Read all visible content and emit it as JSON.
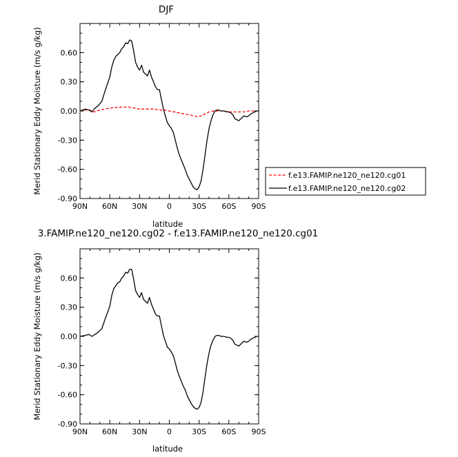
{
  "chart_data": [
    {
      "type": "line",
      "title": "DJF",
      "xlabel": "latitude",
      "ylabel": "Merid Stationary Eddy Moisture (m/s g/kg)",
      "x_ticks": [
        {
          "value": 90,
          "label": "90N"
        },
        {
          "value": 60,
          "label": "60N"
        },
        {
          "value": 30,
          "label": "30N"
        },
        {
          "value": 0,
          "label": "0"
        },
        {
          "value": -30,
          "label": "30S"
        },
        {
          "value": -60,
          "label": "60S"
        },
        {
          "value": -90,
          "label": "90S"
        }
      ],
      "y_ticks": [
        {
          "value": 0.6,
          "label": "0.60"
        },
        {
          "value": 0.3,
          "label": "0.30"
        },
        {
          "value": 0.0,
          "label": "0.00"
        },
        {
          "value": -0.3,
          "label": "-0.30"
        },
        {
          "value": -0.6,
          "label": "-0.60"
        },
        {
          "value": -0.9,
          "label": "-0.90"
        }
      ],
      "xlim": [
        90,
        -90
      ],
      "ylim": [
        -0.9,
        0.9
      ],
      "legend": "right",
      "series": [
        {
          "name": "f.e13.FAMIP.ne120_ne120.cg01",
          "color": "#ff0000",
          "dash": "dashed",
          "x": [
            90,
            85,
            80,
            76,
            70,
            60,
            50,
            45,
            40,
            35,
            30,
            25,
            20,
            15,
            10,
            5,
            0,
            -5,
            -10,
            -15,
            -20,
            -25,
            -28,
            -32,
            -36,
            -40,
            -45,
            -50,
            -55,
            -60,
            -65,
            -70,
            -75,
            -80,
            -85,
            -90
          ],
          "y": [
            0.0,
            0.01,
            0.01,
            -0.01,
            0.01,
            0.03,
            0.04,
            0.04,
            0.04,
            0.03,
            0.02,
            0.02,
            0.02,
            0.02,
            0.01,
            0.01,
            0.0,
            -0.01,
            -0.02,
            -0.03,
            -0.04,
            -0.05,
            -0.06,
            -0.05,
            -0.03,
            -0.01,
            0.0,
            0.0,
            0.0,
            -0.01,
            -0.01,
            -0.01,
            -0.01,
            0.0,
            0.0,
            0.0
          ]
        },
        {
          "name": "f.e13.FAMIP.ne120_ne120.cg02",
          "color": "#000000",
          "dash": "solid",
          "x": [
            90,
            85,
            81,
            78,
            75,
            72,
            68,
            65,
            60,
            58,
            56,
            54,
            52,
            50,
            48,
            46,
            44,
            42,
            40,
            38,
            36,
            34,
            32,
            30,
            28,
            26,
            24,
            22,
            20,
            18,
            16,
            14,
            12,
            10,
            8,
            6,
            4,
            2,
            0,
            -2,
            -4,
            -6,
            -8,
            -10,
            -12,
            -14,
            -16,
            -18,
            -20,
            -22,
            -24,
            -26,
            -28,
            -30,
            -32,
            -34,
            -36,
            -38,
            -40,
            -42,
            -44,
            -46,
            -48,
            -50,
            -52,
            -55,
            -58,
            -60,
            -62,
            -64,
            -66,
            -70,
            -72,
            -75,
            -78,
            -80,
            -82,
            -84,
            -86,
            -88,
            -90
          ],
          "y": [
            0.0,
            0.02,
            0.01,
            -0.01,
            0.03,
            0.05,
            0.1,
            0.2,
            0.35,
            0.45,
            0.52,
            0.56,
            0.58,
            0.6,
            0.64,
            0.66,
            0.7,
            0.69,
            0.73,
            0.72,
            0.62,
            0.5,
            0.45,
            0.42,
            0.47,
            0.4,
            0.38,
            0.36,
            0.42,
            0.35,
            0.3,
            0.25,
            0.22,
            0.22,
            0.12,
            0.02,
            -0.05,
            -0.12,
            -0.15,
            -0.18,
            -0.22,
            -0.3,
            -0.38,
            -0.45,
            -0.5,
            -0.55,
            -0.6,
            -0.66,
            -0.7,
            -0.74,
            -0.78,
            -0.8,
            -0.81,
            -0.78,
            -0.72,
            -0.6,
            -0.45,
            -0.3,
            -0.18,
            -0.1,
            -0.04,
            0.0,
            0.01,
            0.01,
            0.0,
            0.0,
            -0.01,
            -0.01,
            -0.02,
            -0.04,
            -0.08,
            -0.1,
            -0.08,
            -0.05,
            -0.06,
            -0.05,
            -0.03,
            -0.02,
            -0.01,
            0.0,
            0.0
          ]
        }
      ]
    },
    {
      "type": "line",
      "title": "3.FAMIP.ne120_ne120.cg02 - f.e13.FAMIP.ne120_ne120.cg01",
      "xlabel": "latitude",
      "ylabel": "Merid Stationary Eddy Moisture (m/s g/kg)",
      "x_ticks": [
        {
          "value": 90,
          "label": "90N"
        },
        {
          "value": 60,
          "label": "60N"
        },
        {
          "value": 30,
          "label": "30N"
        },
        {
          "value": 0,
          "label": "0"
        },
        {
          "value": -30,
          "label": "30S"
        },
        {
          "value": -60,
          "label": "60S"
        },
        {
          "value": -90,
          "label": "90S"
        }
      ],
      "y_ticks": [
        {
          "value": 0.6,
          "label": "0.60"
        },
        {
          "value": 0.3,
          "label": "0.30"
        },
        {
          "value": 0.0,
          "label": "0.00"
        },
        {
          "value": -0.3,
          "label": "-0.30"
        },
        {
          "value": -0.6,
          "label": "-0.60"
        },
        {
          "value": -0.9,
          "label": "-0.90"
        }
      ],
      "xlim": [
        90,
        -90
      ],
      "ylim": [
        -0.9,
        0.9
      ],
      "series": [
        {
          "color": "#000000",
          "dash": "solid",
          "x": [
            90,
            85,
            81,
            78,
            75,
            72,
            68,
            65,
            60,
            58,
            56,
            54,
            52,
            50,
            48,
            46,
            44,
            42,
            40,
            38,
            36,
            34,
            32,
            30,
            28,
            26,
            24,
            22,
            20,
            18,
            16,
            14,
            12,
            10,
            8,
            6,
            4,
            2,
            0,
            -2,
            -4,
            -6,
            -8,
            -10,
            -12,
            -14,
            -16,
            -18,
            -20,
            -22,
            -24,
            -26,
            -28,
            -30,
            -32,
            -34,
            -36,
            -38,
            -40,
            -42,
            -44,
            -46,
            -48,
            -50,
            -52,
            -55,
            -58,
            -60,
            -62,
            -64,
            -66,
            -70,
            -72,
            -75,
            -78,
            -80,
            -82,
            -84,
            -86,
            -88,
            -90
          ],
          "y": [
            0.0,
            0.01,
            0.02,
            0.0,
            0.02,
            0.04,
            0.08,
            0.17,
            0.31,
            0.42,
            0.49,
            0.52,
            0.55,
            0.56,
            0.6,
            0.62,
            0.66,
            0.65,
            0.69,
            0.69,
            0.59,
            0.47,
            0.43,
            0.4,
            0.45,
            0.38,
            0.36,
            0.34,
            0.4,
            0.33,
            0.28,
            0.23,
            0.21,
            0.21,
            0.11,
            0.01,
            -0.05,
            -0.11,
            -0.13,
            -0.16,
            -0.2,
            -0.27,
            -0.35,
            -0.41,
            -0.46,
            -0.51,
            -0.55,
            -0.61,
            -0.65,
            -0.69,
            -0.72,
            -0.74,
            -0.75,
            -0.73,
            -0.68,
            -0.57,
            -0.42,
            -0.28,
            -0.17,
            -0.09,
            -0.04,
            0.0,
            0.01,
            0.01,
            0.0,
            0.0,
            -0.01,
            -0.01,
            -0.02,
            -0.04,
            -0.08,
            -0.1,
            -0.08,
            -0.05,
            -0.06,
            -0.05,
            -0.03,
            -0.02,
            -0.01,
            0.0,
            0.0
          ]
        }
      ]
    }
  ]
}
